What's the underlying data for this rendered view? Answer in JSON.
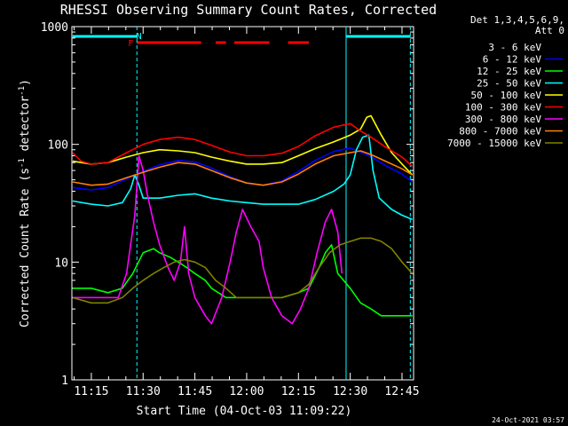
{
  "chart_data": {
    "type": "line",
    "title": "RHESSI Observing Summary Count Rates, Corrected",
    "xlabel": "Start Time (04-Oct-03 11:09:22)",
    "ylabel": "Corrected Count Rate (s",
    "ylabel_exp1": "-1",
    "ylabel_mid": " detector",
    "ylabel_exp2": "-1",
    "ylabel_end": ")",
    "y_scale": "log",
    "ylim": [
      1,
      1000
    ],
    "xlim": [
      11.1561,
      12.8058
    ],
    "y_ticks": [
      {
        "value": 1,
        "label": "1"
      },
      {
        "value": 10,
        "label": "10"
      },
      {
        "value": 100,
        "label": "100"
      },
      {
        "value": 1000,
        "label": "1000"
      }
    ],
    "x_ticks": [
      {
        "value": 11.25,
        "label": "11:15"
      },
      {
        "value": 11.5,
        "label": "11:30"
      },
      {
        "value": 11.75,
        "label": "11:45"
      },
      {
        "value": 12.0,
        "label": "12:00"
      },
      {
        "value": 12.25,
        "label": "12:15"
      },
      {
        "value": 12.5,
        "label": "12:30"
      },
      {
        "value": 12.75,
        "label": "12:45"
      }
    ],
    "legend_header": [
      "Det 1,3,4,5,6,9,",
      "Att 0"
    ],
    "legend_position": "right",
    "series": [
      {
        "name": "3 - 6 keV",
        "color": "#000000",
        "points": [
          [
            11.16,
            42
          ],
          [
            11.25,
            40
          ],
          [
            11.33,
            42
          ],
          [
            11.42,
            50
          ],
          [
            11.5,
            58
          ],
          [
            11.58,
            66
          ],
          [
            11.67,
            72
          ],
          [
            11.75,
            70
          ],
          [
            11.83,
            62
          ],
          [
            11.92,
            52
          ],
          [
            12.0,
            46
          ],
          [
            12.08,
            44
          ],
          [
            12.17,
            48
          ],
          [
            12.25,
            58
          ],
          [
            12.33,
            72
          ],
          [
            12.42,
            86
          ],
          [
            12.5,
            92
          ],
          [
            12.55,
            85
          ],
          [
            12.6,
            78
          ],
          [
            12.67,
            65
          ],
          [
            12.75,
            55
          ],
          [
            12.8,
            47
          ]
        ]
      },
      {
        "name": "6 - 12 keV",
        "color": "#0000ff",
        "points": [
          [
            11.16,
            43
          ],
          [
            11.25,
            41
          ],
          [
            11.33,
            43
          ],
          [
            11.42,
            51
          ],
          [
            11.5,
            59
          ],
          [
            11.58,
            67
          ],
          [
            11.67,
            73
          ],
          [
            11.75,
            71
          ],
          [
            11.83,
            63
          ],
          [
            11.92,
            53
          ],
          [
            12.0,
            47
          ],
          [
            12.08,
            45
          ],
          [
            12.17,
            49
          ],
          [
            12.25,
            59
          ],
          [
            12.33,
            73
          ],
          [
            12.42,
            87
          ],
          [
            12.5,
            93
          ],
          [
            12.55,
            86
          ],
          [
            12.6,
            79
          ],
          [
            12.67,
            66
          ],
          [
            12.75,
            56
          ],
          [
            12.8,
            48
          ]
        ]
      },
      {
        "name": "12 - 25 keV",
        "color": "#00ff00",
        "points": [
          [
            11.16,
            6
          ],
          [
            11.25,
            6
          ],
          [
            11.33,
            5.5
          ],
          [
            11.4,
            6
          ],
          [
            11.45,
            8
          ],
          [
            11.5,
            12
          ],
          [
            11.55,
            13
          ],
          [
            11.58,
            12
          ],
          [
            11.63,
            11
          ],
          [
            11.67,
            10
          ],
          [
            11.71,
            9
          ],
          [
            11.75,
            8
          ],
          [
            11.8,
            7
          ],
          [
            11.83,
            6
          ],
          [
            11.9,
            5
          ],
          [
            12.0,
            5
          ],
          [
            12.08,
            5
          ],
          [
            12.17,
            5
          ],
          [
            12.25,
            5.5
          ],
          [
            12.3,
            6
          ],
          [
            12.35,
            9
          ],
          [
            12.38,
            12
          ],
          [
            12.41,
            14
          ],
          [
            12.44,
            8
          ],
          [
            12.5,
            6
          ],
          [
            12.55,
            4.5
          ],
          [
            12.6,
            4
          ],
          [
            12.65,
            3.5
          ],
          [
            12.7,
            3.5
          ],
          [
            12.75,
            3.5
          ],
          [
            12.8,
            3.5
          ]
        ]
      },
      {
        "name": "25 - 50 keV",
        "color": "#00ffff",
        "points": [
          [
            11.16,
            33
          ],
          [
            11.25,
            31
          ],
          [
            11.33,
            30
          ],
          [
            11.4,
            32
          ],
          [
            11.44,
            42
          ],
          [
            11.46,
            55
          ],
          [
            11.48,
            45
          ],
          [
            11.5,
            35
          ],
          [
            11.58,
            35
          ],
          [
            11.67,
            37
          ],
          [
            11.75,
            38
          ],
          [
            11.83,
            35
          ],
          [
            11.92,
            33
          ],
          [
            12.0,
            32
          ],
          [
            12.08,
            31
          ],
          [
            12.17,
            31
          ],
          [
            12.25,
            31
          ],
          [
            12.33,
            34
          ],
          [
            12.42,
            40
          ],
          [
            12.47,
            46
          ],
          [
            12.5,
            55
          ],
          [
            12.53,
            90
          ],
          [
            12.56,
            115
          ],
          [
            12.59,
            120
          ],
          [
            12.61,
            60
          ],
          [
            12.64,
            35
          ],
          [
            12.7,
            28
          ],
          [
            12.75,
            25
          ],
          [
            12.8,
            23
          ]
        ]
      },
      {
        "name": "50 - 100 keV",
        "color": "#ffff00",
        "points": [
          [
            11.16,
            72
          ],
          [
            11.25,
            68
          ],
          [
            11.33,
            70
          ],
          [
            11.42,
            78
          ],
          [
            11.5,
            85
          ],
          [
            11.58,
            90
          ],
          [
            11.67,
            88
          ],
          [
            11.75,
            85
          ],
          [
            11.83,
            78
          ],
          [
            11.92,
            72
          ],
          [
            12.0,
            68
          ],
          [
            12.08,
            68
          ],
          [
            12.17,
            70
          ],
          [
            12.25,
            80
          ],
          [
            12.33,
            92
          ],
          [
            12.42,
            105
          ],
          [
            12.5,
            120
          ],
          [
            12.55,
            135
          ],
          [
            12.58,
            170
          ],
          [
            12.6,
            175
          ],
          [
            12.65,
            120
          ],
          [
            12.7,
            85
          ],
          [
            12.75,
            68
          ],
          [
            12.8,
            55
          ]
        ]
      },
      {
        "name": "100 - 300 keV",
        "color": "#ff0000",
        "points": [
          [
            11.16,
            85
          ],
          [
            11.2,
            72
          ],
          [
            11.25,
            68
          ],
          [
            11.33,
            70
          ],
          [
            11.42,
            85
          ],
          [
            11.5,
            100
          ],
          [
            11.58,
            110
          ],
          [
            11.67,
            115
          ],
          [
            11.75,
            110
          ],
          [
            11.83,
            98
          ],
          [
            11.92,
            86
          ],
          [
            12.0,
            80
          ],
          [
            12.08,
            80
          ],
          [
            12.17,
            84
          ],
          [
            12.25,
            96
          ],
          [
            12.33,
            118
          ],
          [
            12.42,
            140
          ],
          [
            12.5,
            150
          ],
          [
            12.55,
            130
          ],
          [
            12.6,
            115
          ],
          [
            12.67,
            95
          ],
          [
            12.75,
            78
          ],
          [
            12.8,
            65
          ]
        ]
      },
      {
        "name": "300 - 800 keV",
        "color": "#ff00ff",
        "points": [
          [
            11.16,
            5
          ],
          [
            11.25,
            5
          ],
          [
            11.33,
            5
          ],
          [
            11.38,
            5
          ],
          [
            11.42,
            8
          ],
          [
            11.46,
            25
          ],
          [
            11.48,
            80
          ],
          [
            11.5,
            60
          ],
          [
            11.52,
            38
          ],
          [
            11.55,
            22
          ],
          [
            11.58,
            14
          ],
          [
            11.62,
            9
          ],
          [
            11.65,
            7
          ],
          [
            11.68,
            10
          ],
          [
            11.7,
            20
          ],
          [
            11.72,
            8
          ],
          [
            11.75,
            5
          ],
          [
            11.8,
            3.5
          ],
          [
            11.83,
            3
          ],
          [
            11.88,
            5
          ],
          [
            11.92,
            10
          ],
          [
            11.95,
            18
          ],
          [
            11.98,
            28
          ],
          [
            12.02,
            20
          ],
          [
            12.06,
            15
          ],
          [
            12.08,
            9
          ],
          [
            12.12,
            5
          ],
          [
            12.17,
            3.5
          ],
          [
            12.22,
            3
          ],
          [
            12.26,
            4
          ],
          [
            12.3,
            6
          ],
          [
            12.34,
            12
          ],
          [
            12.38,
            22
          ],
          [
            12.41,
            28
          ],
          [
            12.44,
            18
          ],
          [
            12.46,
            8
          ]
        ]
      },
      {
        "name": "800 - 7000 keV",
        "color": "#ff8000",
        "points": [
          [
            11.16,
            48
          ],
          [
            11.25,
            45
          ],
          [
            11.33,
            46
          ],
          [
            11.42,
            52
          ],
          [
            11.5,
            58
          ],
          [
            11.58,
            64
          ],
          [
            11.67,
            70
          ],
          [
            11.75,
            68
          ],
          [
            11.83,
            60
          ],
          [
            11.92,
            52
          ],
          [
            12.0,
            47
          ],
          [
            12.08,
            45
          ],
          [
            12.17,
            48
          ],
          [
            12.25,
            56
          ],
          [
            12.33,
            68
          ],
          [
            12.42,
            80
          ],
          [
            12.5,
            85
          ],
          [
            12.55,
            88
          ],
          [
            12.6,
            82
          ],
          [
            12.67,
            72
          ],
          [
            12.75,
            62
          ],
          [
            12.8,
            55
          ]
        ]
      },
      {
        "name": "7000 - 15000 keV",
        "color": "#808000",
        "points": [
          [
            11.16,
            5
          ],
          [
            11.25,
            4.5
          ],
          [
            11.33,
            4.5
          ],
          [
            11.4,
            5
          ],
          [
            11.45,
            6
          ],
          [
            11.5,
            7
          ],
          [
            11.55,
            8
          ],
          [
            11.6,
            9
          ],
          [
            11.65,
            10
          ],
          [
            11.7,
            10.5
          ],
          [
            11.75,
            10
          ],
          [
            11.8,
            9
          ],
          [
            11.85,
            7
          ],
          [
            11.9,
            6
          ],
          [
            11.95,
            5
          ],
          [
            12.0,
            5
          ],
          [
            12.08,
            5
          ],
          [
            12.17,
            5
          ],
          [
            12.25,
            5.5
          ],
          [
            12.3,
            6.5
          ],
          [
            12.35,
            9
          ],
          [
            12.4,
            12
          ],
          [
            12.45,
            14
          ],
          [
            12.5,
            15
          ],
          [
            12.55,
            16
          ],
          [
            12.6,
            16
          ],
          [
            12.65,
            15
          ],
          [
            12.7,
            13
          ],
          [
            12.75,
            10
          ],
          [
            12.8,
            8
          ]
        ]
      }
    ],
    "vlines": [
      {
        "x": 11.47,
        "style": "dashed"
      },
      {
        "x": 12.48,
        "style": "solid"
      },
      {
        "x": 12.79,
        "style": "dashed"
      }
    ],
    "flags": [
      {
        "label": "N",
        "x": 11.48,
        "color": "#00ffff"
      },
      {
        "label": "F",
        "x": 11.44,
        "color": "#ff0000"
      }
    ],
    "attenuator_bars": [
      [
        11.16,
        11.47
      ],
      [
        12.48,
        12.79
      ]
    ],
    "flare_bars": [
      [
        11.47,
        11.78
      ],
      [
        11.85,
        11.9
      ],
      [
        11.94,
        12.11
      ],
      [
        12.2,
        12.3
      ]
    ],
    "timestamp": "24-Oct-2021 03:57"
  }
}
